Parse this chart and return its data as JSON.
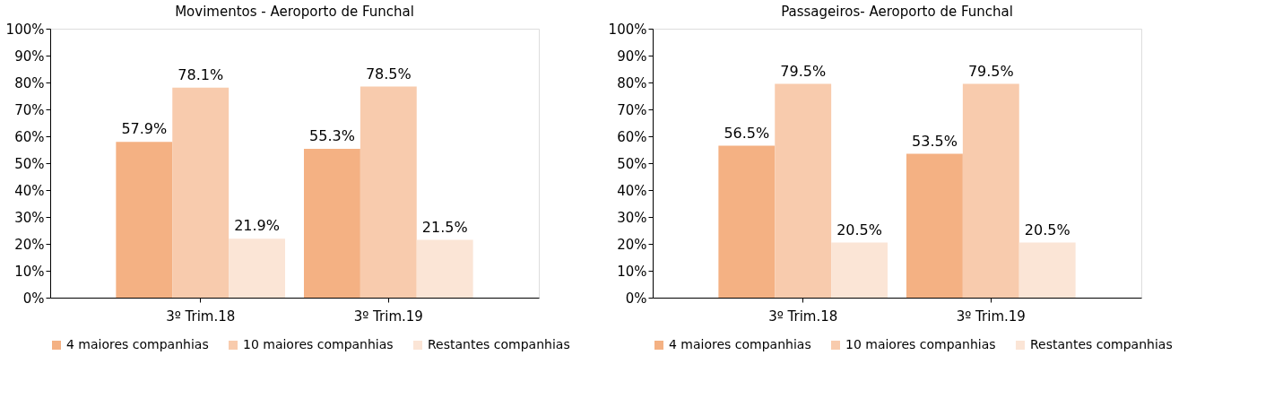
{
  "chart_data": [
    {
      "type": "bar",
      "title": "Movimentos - Aeroporto de Funchal",
      "categories": [
        "3º Trim.18",
        "3º Trim.19"
      ],
      "series": [
        {
          "name": "4 maiores companhias",
          "color": "#f4b183",
          "values": [
            57.9,
            55.3
          ],
          "value_labels": [
            "57.9%",
            "55.3%"
          ]
        },
        {
          "name": "10 maiores companhias",
          "color": "#f8cbad",
          "values": [
            78.1,
            78.5
          ],
          "value_labels": [
            "78.1%",
            "78.5%"
          ]
        },
        {
          "name": "Restantes companhias",
          "color": "#fbe5d6",
          "values": [
            21.9,
            21.5
          ],
          "value_labels": [
            "21.9%",
            "21.5%"
          ]
        }
      ],
      "ylim": [
        0,
        100
      ],
      "yticks": [
        {
          "value": 0,
          "label": "0%"
        },
        {
          "value": 10,
          "label": "10%"
        },
        {
          "value": 20,
          "label": "20%"
        },
        {
          "value": 30,
          "label": "30%"
        },
        {
          "value": 40,
          "label": "40%"
        },
        {
          "value": 50,
          "label": "50%"
        },
        {
          "value": 60,
          "label": "60%"
        },
        {
          "value": 70,
          "label": "70%"
        },
        {
          "value": 80,
          "label": "80%"
        },
        {
          "value": 90,
          "label": "90%"
        },
        {
          "value": 100,
          "label": "100%"
        }
      ],
      "grid": false,
      "legend": "bottom"
    },
    {
      "type": "bar",
      "title": "Passageiros- Aeroporto de Funchal",
      "categories": [
        "3º Trim.18",
        "3º Trim.19"
      ],
      "series": [
        {
          "name": "4 maiores companhias",
          "color": "#f4b183",
          "values": [
            56.5,
            53.5
          ],
          "value_labels": [
            "56.5%",
            "53.5%"
          ]
        },
        {
          "name": "10 maiores companhias",
          "color": "#f8cbad",
          "values": [
            79.5,
            79.5
          ],
          "value_labels": [
            "79.5%",
            "79.5%"
          ]
        },
        {
          "name": "Restantes companhias",
          "color": "#fbe5d6",
          "values": [
            20.5,
            20.5
          ],
          "value_labels": [
            "20.5%",
            "20.5%"
          ]
        }
      ],
      "ylim": [
        0,
        100
      ],
      "yticks": [
        {
          "value": 0,
          "label": "0%"
        },
        {
          "value": 10,
          "label": "10%"
        },
        {
          "value": 20,
          "label": "20%"
        },
        {
          "value": 30,
          "label": "30%"
        },
        {
          "value": 40,
          "label": "40%"
        },
        {
          "value": 50,
          "label": "50%"
        },
        {
          "value": 60,
          "label": "60%"
        },
        {
          "value": 70,
          "label": "70%"
        },
        {
          "value": 80,
          "label": "80%"
        },
        {
          "value": 90,
          "label": "90%"
        },
        {
          "value": 100,
          "label": "100%"
        }
      ],
      "grid": false,
      "legend": "bottom"
    }
  ]
}
